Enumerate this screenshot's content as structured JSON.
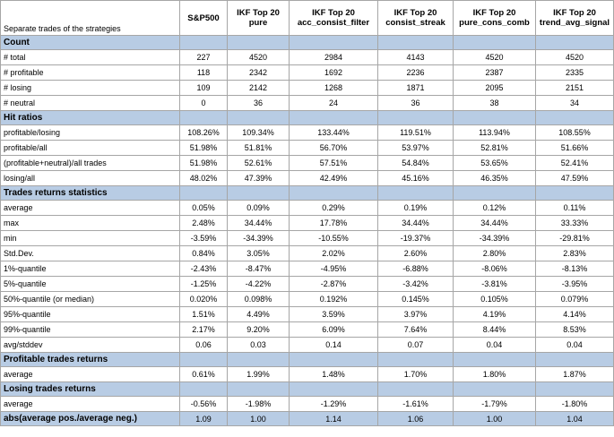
{
  "caption": "Separate trades of the strategies",
  "columns": [
    {
      "line1": "S&P500",
      "line2": ""
    },
    {
      "line1": "IKF Top 20",
      "line2": "pure"
    },
    {
      "line1": "IKF Top 20",
      "line2": "acc_consist_filter"
    },
    {
      "line1": "IKF Top 20",
      "line2": "consist_streak"
    },
    {
      "line1": "IKF Top 20",
      "line2": "pure_cons_comb"
    },
    {
      "line1": "IKF Top 20",
      "line2": "trend_avg_signal"
    }
  ],
  "sections": [
    {
      "title": "Count",
      "rows": [
        {
          "label": "# total",
          "values": [
            "227",
            "4520",
            "2984",
            "4143",
            "4520",
            "4520"
          ]
        },
        {
          "label": "# profitable",
          "values": [
            "118",
            "2342",
            "1692",
            "2236",
            "2387",
            "2335"
          ]
        },
        {
          "label": "# losing",
          "values": [
            "109",
            "2142",
            "1268",
            "1871",
            "2095",
            "2151"
          ]
        },
        {
          "label": "# neutral",
          "values": [
            "0",
            "36",
            "24",
            "36",
            "38",
            "34"
          ]
        }
      ]
    },
    {
      "title": "Hit ratios",
      "rows": [
        {
          "label": "profitable/losing",
          "values": [
            "108.26%",
            "109.34%",
            "133.44%",
            "119.51%",
            "113.94%",
            "108.55%"
          ]
        },
        {
          "label": "profitable/all",
          "values": [
            "51.98%",
            "51.81%",
            "56.70%",
            "53.97%",
            "52.81%",
            "51.66%"
          ]
        },
        {
          "label": "(profitable+neutral)/all trades",
          "values": [
            "51.98%",
            "52.61%",
            "57.51%",
            "54.84%",
            "53.65%",
            "52.41%"
          ]
        },
        {
          "label": "losing/all",
          "values": [
            "48.02%",
            "47.39%",
            "42.49%",
            "45.16%",
            "46.35%",
            "47.59%"
          ]
        }
      ]
    },
    {
      "title": "Trades returns statistics",
      "rows": [
        {
          "label": "average",
          "values": [
            "0.05%",
            "0.09%",
            "0.29%",
            "0.19%",
            "0.12%",
            "0.11%"
          ]
        },
        {
          "label": "max",
          "values": [
            "2.48%",
            "34.44%",
            "17.78%",
            "34.44%",
            "34.44%",
            "33.33%"
          ]
        },
        {
          "label": "min",
          "values": [
            "-3.59%",
            "-34.39%",
            "-10.55%",
            "-19.37%",
            "-34.39%",
            "-29.81%"
          ]
        },
        {
          "label": "Std.Dev.",
          "values": [
            "0.84%",
            "3.05%",
            "2.02%",
            "2.60%",
            "2.80%",
            "2.83%"
          ]
        },
        {
          "label": "1%-quantile",
          "values": [
            "-2.43%",
            "-8.47%",
            "-4.95%",
            "-6.88%",
            "-8.06%",
            "-8.13%"
          ]
        },
        {
          "label": "5%-quantile",
          "values": [
            "-1.25%",
            "-4.22%",
            "-2.87%",
            "-3.42%",
            "-3.81%",
            "-3.95%"
          ]
        },
        {
          "label": "50%-quantile (or median)",
          "values": [
            "0.020%",
            "0.098%",
            "0.192%",
            "0.145%",
            "0.105%",
            "0.079%"
          ]
        },
        {
          "label": "95%-quantile",
          "values": [
            "1.51%",
            "4.49%",
            "3.59%",
            "3.97%",
            "4.19%",
            "4.14%"
          ]
        },
        {
          "label": "99%-quantile",
          "values": [
            "2.17%",
            "9.20%",
            "6.09%",
            "7.64%",
            "8.44%",
            "8.53%"
          ]
        },
        {
          "label": "avg/stddev",
          "values": [
            "0.06",
            "0.03",
            "0.14",
            "0.07",
            "0.04",
            "0.04"
          ]
        }
      ]
    },
    {
      "title": "Profitable trades returns",
      "rows": [
        {
          "label": "average",
          "values": [
            "0.61%",
            "1.99%",
            "1.48%",
            "1.70%",
            "1.80%",
            "1.87%"
          ]
        }
      ]
    },
    {
      "title": "Losing trades returns",
      "rows": [
        {
          "label": "average",
          "values": [
            "-0.56%",
            "-1.98%",
            "-1.29%",
            "-1.61%",
            "-1.79%",
            "-1.80%"
          ]
        }
      ]
    }
  ],
  "summary": {
    "label": "abs(average pos./average neg.)",
    "values": [
      "1.09",
      "1.00",
      "1.14",
      "1.06",
      "1.00",
      "1.04"
    ]
  },
  "colors": {
    "section_fill": "#b8cce4",
    "grid": "#a6a6a6"
  }
}
